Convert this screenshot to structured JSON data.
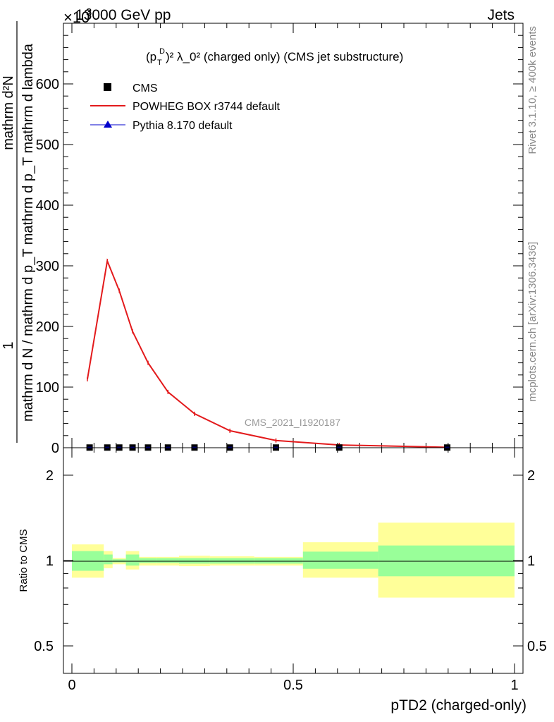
{
  "header": {
    "energy_label": "13000 GeV pp",
    "category_label": "Jets",
    "exponent_label": "×10",
    "exponent_power": "3"
  },
  "side_text": {
    "rivet": "Rivet 3.1.10, ≥ 400k events",
    "source": "mcplots.cern.ch [arXiv:1306.3436]"
  },
  "main_panel": {
    "title_main": "(p",
    "title_sub_T": "T",
    "title_sup_D": "D",
    "title_rest": ")² λ_0² (charged only) (CMS jet substructure)",
    "ylabel_top": "1",
    "ylabel_num": "mathrm d²N",
    "ylabel_den": "mathrm d N / mathrm d p_T mathrm d p_T mathrm d lambda",
    "watermark": "CMS_2021_I1920187",
    "yticks": [
      "0",
      "100",
      "200",
      "300",
      "400",
      "500",
      "600"
    ]
  },
  "ratio_panel": {
    "ylabel": "Ratio to CMS",
    "yticks": [
      "0.5",
      "1",
      "2"
    ]
  },
  "xaxis": {
    "label": "pTD2 (charged-only)",
    "ticks": [
      "0",
      "0.5",
      "1"
    ]
  },
  "legend": [
    {
      "name": "CMS",
      "color": "#000000",
      "style": "square"
    },
    {
      "name": "POWHEG BOX r3744 default",
      "color": "#e31a1c",
      "style": "line"
    },
    {
      "name": "Pythia 8.170 default",
      "color": "#0000cc",
      "style": "triangle"
    }
  ],
  "chart_data": {
    "type": "line",
    "xlim": [
      0,
      1
    ],
    "ylim": [
      0,
      700
    ],
    "ratio_ylim": [
      0.4,
      2.5
    ],
    "ratio_scale": "log",
    "bin_edges": [
      0.0,
      0.08,
      0.1,
      0.12,
      0.16,
      0.19,
      0.24,
      0.32,
      0.4,
      0.52,
      0.7,
      1.0
    ],
    "series": [
      {
        "name": "CMS",
        "color": "#000000",
        "x": [
          0.04,
          0.08,
          0.107,
          0.137,
          0.172,
          0.217,
          0.277,
          0.357,
          0.461,
          0.604,
          0.848
        ],
        "values": [
          0.3,
          0.3,
          0.3,
          0.3,
          0.3,
          0.3,
          0.3,
          0.3,
          0.3,
          0.3,
          0.3
        ]
      },
      {
        "name": "POWHEG BOX r3744 default",
        "color": "#e31a1c",
        "x": [
          0.035,
          0.08,
          0.107,
          0.137,
          0.172,
          0.217,
          0.277,
          0.357,
          0.461,
          0.604,
          0.848
        ],
        "values": [
          113,
          308,
          259,
          192,
          140,
          92,
          56,
          28,
          12,
          4.5,
          0.7
        ]
      },
      {
        "name": "Pythia 8.170 default",
        "color": "#0000cc",
        "x": [],
        "values": []
      }
    ],
    "ratio_bands": {
      "inner_color": "#99ff99",
      "outer_color": "#ffff99",
      "bins": [
        {
          "x0": 0.0,
          "x1": 0.072,
          "inner": [
            0.92,
            1.08
          ],
          "outer": [
            0.87,
            1.14
          ]
        },
        {
          "x0": 0.072,
          "x1": 0.092,
          "inner": [
            0.97,
            1.05
          ],
          "outer": [
            0.94,
            1.08
          ]
        },
        {
          "x0": 0.092,
          "x1": 0.122,
          "inner": [
            0.985,
            1.01
          ],
          "outer": [
            0.97,
            1.02
          ]
        },
        {
          "x0": 0.122,
          "x1": 0.152,
          "inner": [
            0.96,
            1.05
          ],
          "outer": [
            0.93,
            1.08
          ]
        },
        {
          "x0": 0.152,
          "x1": 0.192,
          "inner": [
            0.98,
            1.02
          ],
          "outer": [
            0.96,
            1.03
          ]
        },
        {
          "x0": 0.192,
          "x1": 0.242,
          "inner": [
            0.98,
            1.02
          ],
          "outer": [
            0.96,
            1.03
          ]
        },
        {
          "x0": 0.242,
          "x1": 0.312,
          "inner": [
            0.975,
            1.02
          ],
          "outer": [
            0.955,
            1.04
          ]
        },
        {
          "x0": 0.312,
          "x1": 0.412,
          "inner": [
            0.975,
            1.02
          ],
          "outer": [
            0.96,
            1.035
          ]
        },
        {
          "x0": 0.412,
          "x1": 0.522,
          "inner": [
            0.975,
            1.02
          ],
          "outer": [
            0.96,
            1.03
          ]
        },
        {
          "x0": 0.522,
          "x1": 0.692,
          "inner": [
            0.935,
            1.075
          ],
          "outer": [
            0.87,
            1.16
          ]
        },
        {
          "x0": 0.692,
          "x1": 1.0,
          "inner": [
            0.88,
            1.13
          ],
          "outer": [
            0.74,
            1.36
          ]
        }
      ]
    }
  }
}
